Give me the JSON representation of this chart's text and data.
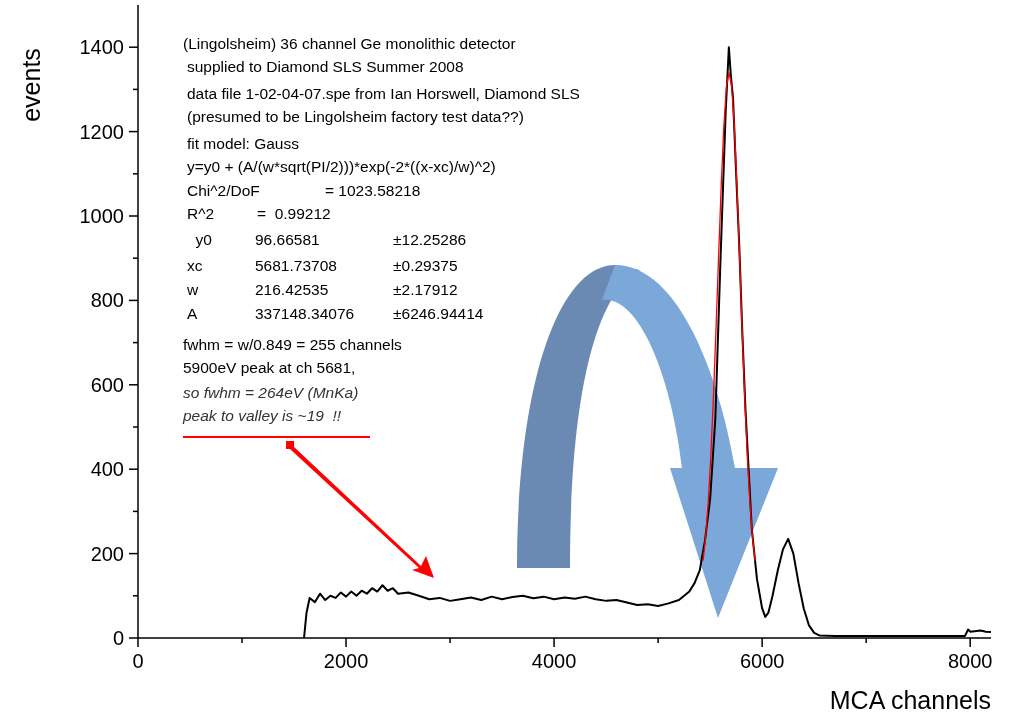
{
  "chart_data": {
    "type": "line",
    "xlabel": "MCA channels",
    "ylabel": "events",
    "xlim": [
      0,
      8200
    ],
    "ylim": [
      0,
      1500
    ],
    "xticks": [
      0,
      {
        "value": 1000,
        "label": null
      },
      2000,
      {
        "value": 3000,
        "label": null
      },
      4000,
      {
        "value": 5000,
        "label": null
      },
      6000,
      {
        "value": 7000,
        "label": null
      },
      8000
    ],
    "yticks": [
      0,
      {
        "value": 100,
        "label": null
      },
      200,
      {
        "value": 300,
        "label": null
      },
      400,
      {
        "value": 500,
        "label": null
      },
      600,
      {
        "value": 700,
        "label": null
      },
      800,
      {
        "value": 900,
        "label": null
      },
      1000,
      {
        "value": 1100,
        "label": null
      },
      1200,
      {
        "value": 1300,
        "label": null
      },
      1400
    ],
    "grid": false,
    "marker": "none",
    "line_style": "solid",
    "series": [
      {
        "color": "#000000",
        "x": [
          1596,
          1620,
          1650,
          1700,
          1750,
          1800,
          1850,
          1900,
          1950,
          2000,
          2050,
          2100,
          2150,
          2200,
          2250,
          2300,
          2350,
          2400,
          2450,
          2500,
          2600,
          2700,
          2800,
          2900,
          3000,
          3100,
          3200,
          3300,
          3400,
          3500,
          3600,
          3700,
          3800,
          3900,
          4000,
          4100,
          4200,
          4300,
          4400,
          4500,
          4600,
          4700,
          4800,
          4900,
          5000,
          5100,
          5200,
          5300,
          5350,
          5400,
          5450,
          5500,
          5550,
          5600,
          5650,
          5680,
          5700,
          5720,
          5750,
          5780,
          5810,
          5840,
          5870,
          5900,
          5950,
          6000,
          6030,
          6060,
          6100,
          6150,
          6200,
          6250,
          6300,
          6350,
          6400,
          6450,
          6500,
          6550,
          6700,
          7000,
          7500,
          7950,
          7980,
          8000,
          8100,
          8150,
          8200
        ],
        "values": [
          0,
          60,
          95,
          85,
          105,
          90,
          100,
          95,
          108,
          98,
          110,
          100,
          112,
          105,
          118,
          110,
          125,
          112,
          118,
          105,
          108,
          100,
          92,
          95,
          88,
          92,
          96,
          90,
          98,
          92,
          97,
          100,
          94,
          98,
          92,
          96,
          93,
          98,
          92,
          88,
          90,
          84,
          78,
          80,
          76,
          82,
          90,
          110,
          130,
          160,
          230,
          330,
          520,
          900,
          1250,
          1400,
          1330,
          1280,
          1100,
          930,
          720,
          540,
          400,
          260,
          140,
          70,
          50,
          60,
          100,
          160,
          210,
          235,
          200,
          130,
          70,
          30,
          12,
          6,
          5,
          5,
          5,
          5,
          20,
          15,
          18,
          15,
          14
        ]
      },
      {
        "color": "#ff0000",
        "x": [
          5432,
          5457,
          5482,
          5507,
          5532,
          5557,
          5582,
          5607,
          5632,
          5657,
          5682,
          5707,
          5732,
          5757,
          5782,
          5807,
          5832,
          5857,
          5882,
          5907,
          5932
        ],
        "values": [
          183,
          240,
          322,
          433,
          572,
          735,
          908,
          1075,
          1214,
          1307,
          1340,
          1307,
          1214,
          1075,
          908,
          735,
          572,
          433,
          322,
          240,
          183
        ]
      }
    ],
    "annotations": [
      "(Lingolsheim) 36 channel Ge monolithic detector",
      "supplied to Diamond SLS Summer 2008",
      "data file 1-02-04-07.spe from Ian Horswell, Diamond SLS",
      "(presumed to be Lingolsheim factory test data??)",
      "fit model: Gauss",
      "y=y0 + (A/(w*sqrt(PI/2)))*exp(-2*((x-xc)/w)^2)",
      "Chi^2/DoF\t= 1023.58218",
      "R^2\t=  0.99212",
      "  y0\t96.66581\t±12.25286",
      "xc\t5681.73708\t±0.29375",
      "w\t216.42535\t±2.17912",
      "A\t337148.34076\t±6246.94414",
      "fwhm = w/0.849 = 255 channels",
      "5900eV peak at ch 5681,",
      "so fwhm = 264eV (MnKa)",
      "peak to valley is ~19  !!"
    ]
  }
}
